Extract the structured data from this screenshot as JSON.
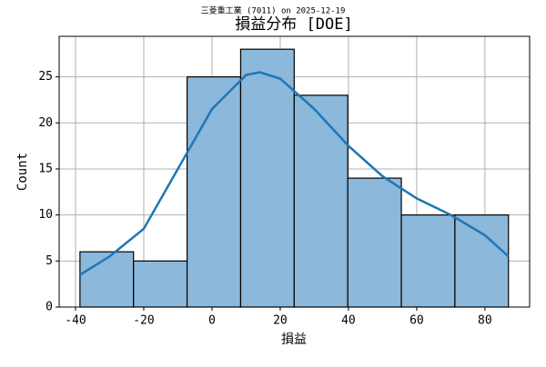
{
  "chart_data": {
    "type": "histogram",
    "suptitle": "三菱重工業 (7011) on 2025-12-19",
    "title": "損益分布 [DOE]",
    "xlabel": "損益",
    "ylabel": "Count",
    "bins": [
      -38.7,
      -23.0,
      -7.3,
      8.4,
      24.1,
      39.8,
      55.5,
      71.2,
      86.9
    ],
    "values": [
      6,
      5,
      25,
      28,
      23,
      14,
      10,
      10
    ],
    "color": "#8bb8db",
    "edgecolor": "#000000",
    "kde": {
      "color": "#1f77b4",
      "x": [
        -38.7,
        -30,
        -20,
        -10,
        0,
        10,
        14,
        20,
        30,
        40,
        50,
        60,
        70,
        80,
        86.9
      ],
      "y": [
        3.5,
        5.5,
        8.5,
        15,
        21.5,
        25.2,
        25.5,
        24.8,
        21.5,
        17.5,
        14.2,
        11.8,
        10,
        7.8,
        5.5
      ]
    },
    "xlim": [
      -44.8,
      93.1
    ],
    "ylim": [
      0,
      29.4
    ],
    "xticks": [
      -40,
      -20,
      0,
      20,
      40,
      60,
      80
    ],
    "yticks": [
      0,
      5,
      10,
      15,
      20,
      25
    ],
    "grid": true
  }
}
